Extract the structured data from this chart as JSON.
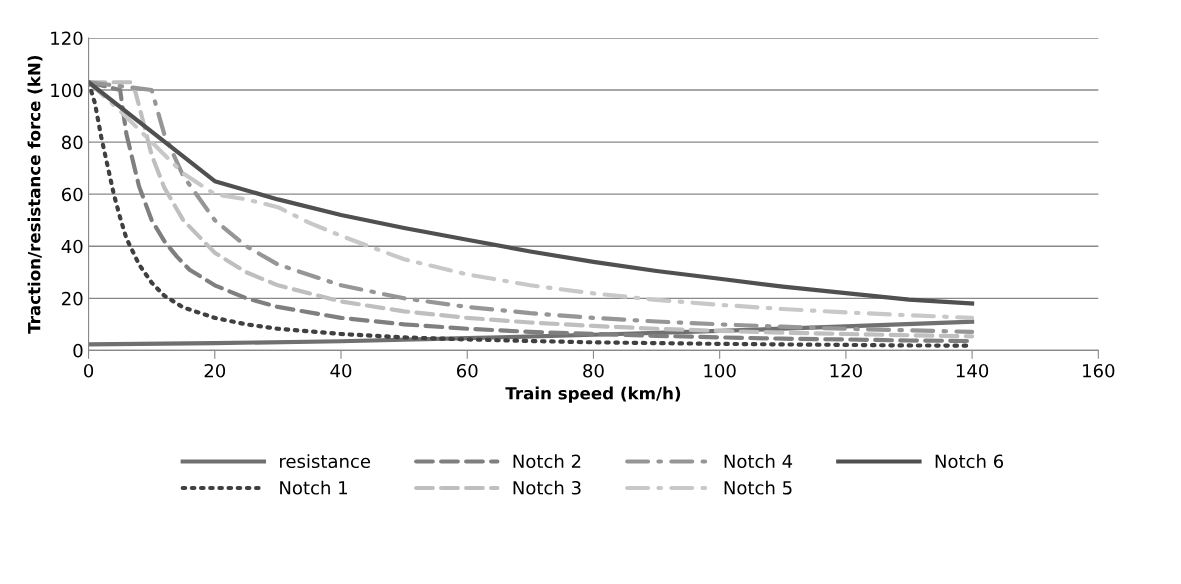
{
  "chart_data": {
    "type": "line",
    "xlabel": "Train speed (km/h)",
    "ylabel": "Traction/resistance force (kN)",
    "xlim": [
      0,
      160
    ],
    "xticks": [
      0,
      20,
      40,
      60,
      80,
      100,
      120,
      140,
      160
    ],
    "ylim": [
      0,
      120
    ],
    "yticks": [
      0,
      20,
      40,
      60,
      80,
      100,
      120
    ],
    "grid": "y",
    "legend": "bottom",
    "marker": "none",
    "series": [
      {
        "name": "resistance",
        "color": "#707070",
        "line_style": "solid",
        "x": [
          0,
          20,
          40,
          60,
          80,
          100,
          120,
          140
        ],
        "values": [
          2.3,
          2.8,
          3.5,
          4.7,
          6,
          7.5,
          9.2,
          11
        ]
      },
      {
        "name": "Notch 1",
        "color": "#404040",
        "line_style": "dotted",
        "x": [
          0,
          1,
          2,
          3,
          4,
          5,
          6,
          8,
          10,
          12,
          15,
          20,
          25,
          30,
          40,
          50,
          60,
          70,
          80,
          90,
          100,
          110,
          120,
          130,
          140
        ],
        "values": [
          103,
          95,
          82,
          71,
          60,
          51,
          43,
          33,
          26,
          21,
          16.5,
          12.5,
          10,
          8.3,
          6.3,
          5,
          4.2,
          3.6,
          3.1,
          2.8,
          2.5,
          2.3,
          2.1,
          1.9,
          1.8
        ]
      },
      {
        "name": "Notch 2",
        "color": "#7f7f7f",
        "line_style": "dashed",
        "x": [
          0,
          5,
          6,
          8,
          10,
          12,
          14,
          16,
          20,
          25,
          30,
          40,
          50,
          60,
          70,
          80,
          90,
          100,
          110,
          120,
          130,
          140
        ],
        "values": [
          103,
          100,
          83,
          63,
          50,
          42,
          36,
          31,
          25,
          20,
          16.7,
          12.5,
          10,
          8.3,
          7.1,
          6.3,
          5.6,
          5,
          4.5,
          4.2,
          3.8,
          3.6
        ]
      },
      {
        "name": "Notch 3",
        "color": "#bfbfbf",
        "line_style": "dashed",
        "x": [
          0,
          7,
          8,
          10,
          12,
          15,
          20,
          25,
          30,
          40,
          50,
          60,
          70,
          80,
          90,
          100,
          110,
          120,
          130,
          140
        ],
        "values": [
          103,
          103,
          94,
          75,
          62.5,
          50,
          37.5,
          30,
          25,
          18.8,
          15,
          12.5,
          10.7,
          9.4,
          8.3,
          7.5,
          6.8,
          6.3,
          5.8,
          5.4
        ]
      },
      {
        "name": "Notch 4",
        "color": "#969696",
        "line_style": "dashdot",
        "x": [
          0,
          10,
          12,
          15,
          20,
          25,
          30,
          40,
          50,
          60,
          70,
          80,
          90,
          100,
          110,
          120,
          130,
          140
        ],
        "values": [
          103,
          100,
          83,
          67,
          50,
          40,
          33,
          25,
          20,
          16.7,
          14.3,
          12.5,
          11.1,
          10,
          9.1,
          8.3,
          7.7,
          7.1
        ]
      },
      {
        "name": "Notch 5",
        "color": "#c8c8c8",
        "line_style": "dashdot",
        "x": [
          0,
          5,
          10,
          15,
          20,
          25,
          30,
          35,
          40,
          50,
          60,
          70,
          80,
          90,
          100,
          110,
          120,
          130,
          140
        ],
        "values": [
          103,
          92,
          80,
          68,
          60,
          58,
          55,
          49,
          44,
          35,
          29.2,
          25,
          21.9,
          19.4,
          17.5,
          15.9,
          14.6,
          13.5,
          12.5
        ]
      },
      {
        "name": "Notch 6",
        "color": "#505050",
        "line_style": "solid",
        "x": [
          0,
          20,
          30,
          40,
          50,
          60,
          70,
          80,
          90,
          100,
          110,
          120,
          130,
          140
        ],
        "values": [
          103,
          65,
          58,
          52,
          47,
          42.5,
          38,
          34,
          30.5,
          27.5,
          24.5,
          22,
          19.5,
          18
        ]
      }
    ]
  }
}
